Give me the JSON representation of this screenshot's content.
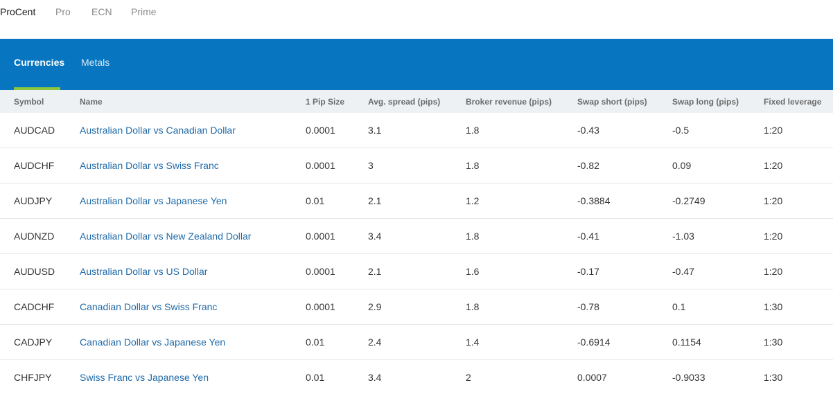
{
  "account_tabs": [
    {
      "label": "ProCent",
      "active": true
    },
    {
      "label": "Pro",
      "active": false
    },
    {
      "label": "ECN",
      "active": false
    },
    {
      "label": "Prime",
      "active": false
    }
  ],
  "instrument_tabs": [
    {
      "label": "Currencies",
      "active": true
    },
    {
      "label": "Metals",
      "active": false
    }
  ],
  "colors": {
    "band": "#0775bf",
    "active_indicator": "#8cc63f",
    "link": "#1f6aa8",
    "header_bg": "#eef1f4"
  },
  "table": {
    "columns": [
      "Symbol",
      "Name",
      "1 Pip Size",
      "Avg. spread (pips)",
      "Broker revenue (pips)",
      "Swap short (pips)",
      "Swap long (pips)",
      "Fixed leverage"
    ],
    "rows": [
      {
        "symbol": "AUDCAD",
        "name": "Australian Dollar vs Canadian Dollar",
        "pip": "0.0001",
        "spread": "3.1",
        "revenue": "1.8",
        "swap_short": "-0.43",
        "swap_long": "-0.5",
        "leverage": "1:20"
      },
      {
        "symbol": "AUDCHF",
        "name": "Australian Dollar vs Swiss Franc",
        "pip": "0.0001",
        "spread": "3",
        "revenue": "1.8",
        "swap_short": "-0.82",
        "swap_long": "0.09",
        "leverage": "1:20"
      },
      {
        "symbol": "AUDJPY",
        "name": "Australian Dollar vs Japanese Yen",
        "pip": "0.01",
        "spread": "2.1",
        "revenue": "1.2",
        "swap_short": "-0.3884",
        "swap_long": "-0.2749",
        "leverage": "1:20"
      },
      {
        "symbol": "AUDNZD",
        "name": "Australian Dollar vs New Zealand Dollar",
        "pip": "0.0001",
        "spread": "3.4",
        "revenue": "1.8",
        "swap_short": "-0.41",
        "swap_long": "-1.03",
        "leverage": "1:20"
      },
      {
        "symbol": "AUDUSD",
        "name": "Australian Dollar vs US Dollar",
        "pip": "0.0001",
        "spread": "2.1",
        "revenue": "1.6",
        "swap_short": "-0.17",
        "swap_long": "-0.47",
        "leverage": "1:20"
      },
      {
        "symbol": "CADCHF",
        "name": "Canadian Dollar vs Swiss Franc",
        "pip": "0.0001",
        "spread": "2.9",
        "revenue": "1.8",
        "swap_short": "-0.78",
        "swap_long": "0.1",
        "leverage": "1:30"
      },
      {
        "symbol": "CADJPY",
        "name": "Canadian Dollar vs Japanese Yen",
        "pip": "0.01",
        "spread": "2.4",
        "revenue": "1.4",
        "swap_short": "-0.6914",
        "swap_long": "0.1154",
        "leverage": "1:30"
      },
      {
        "symbol": "CHFJPY",
        "name": "Swiss Franc vs Japanese Yen",
        "pip": "0.01",
        "spread": "3.4",
        "revenue": "2",
        "swap_short": "0.0007",
        "swap_long": "-0.9033",
        "leverage": "1:30"
      }
    ]
  }
}
